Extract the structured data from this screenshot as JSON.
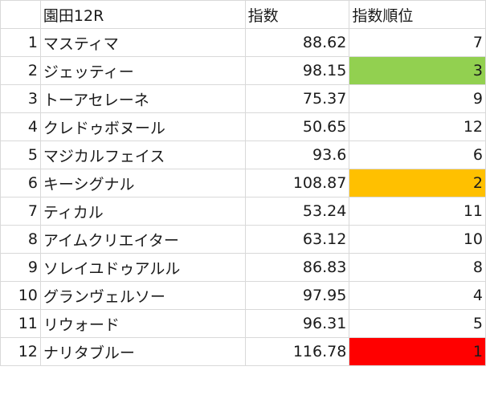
{
  "sheet": {
    "headers": {
      "no": "",
      "name": "園田12R",
      "index": "指数",
      "rank": "指数順位"
    },
    "rows": [
      {
        "no": "1",
        "name": "マスティマ",
        "index": "88.62",
        "rank": "7",
        "highlight": ""
      },
      {
        "no": "2",
        "name": "ジェッティー",
        "index": "98.15",
        "rank": "3",
        "highlight": "#92d050"
      },
      {
        "no": "3",
        "name": "トーアセレーネ",
        "index": "75.37",
        "rank": "9",
        "highlight": ""
      },
      {
        "no": "4",
        "name": "クレドゥボヌール",
        "index": "50.65",
        "rank": "12",
        "highlight": ""
      },
      {
        "no": "5",
        "name": "マジカルフェイス",
        "index": "93.6",
        "rank": "6",
        "highlight": ""
      },
      {
        "no": "6",
        "name": "キーシグナル",
        "index": "108.87",
        "rank": "2",
        "highlight": "#ffc000"
      },
      {
        "no": "7",
        "name": "ティカル",
        "index": "53.24",
        "rank": "11",
        "highlight": ""
      },
      {
        "no": "8",
        "name": "アイムクリエイター",
        "index": "63.12",
        "rank": "10",
        "highlight": ""
      },
      {
        "no": "9",
        "name": "ソレイユドゥアルル",
        "index": "86.83",
        "rank": "8",
        "highlight": ""
      },
      {
        "no": "10",
        "name": "グランヴェルソー",
        "index": "97.95",
        "rank": "4",
        "highlight": ""
      },
      {
        "no": "11",
        "name": "リウォード",
        "index": "96.31",
        "rank": "5",
        "highlight": ""
      },
      {
        "no": "12",
        "name": "ナリタブルー",
        "index": "116.78",
        "rank": "1",
        "highlight": "#ff0000"
      }
    ]
  }
}
